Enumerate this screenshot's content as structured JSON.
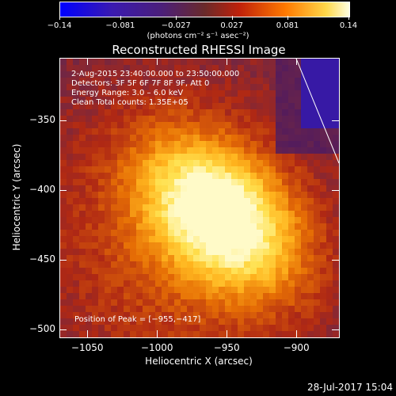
{
  "colorbar": {
    "ticks": [
      "−0.14",
      "−0.081",
      "−0.027",
      "0.027",
      "0.081",
      "0.14"
    ],
    "tick_values": [
      -0.14,
      -0.081,
      -0.027,
      0.027,
      0.081,
      0.14
    ],
    "range": [
      -0.14,
      0.14
    ],
    "unit_label": "(photons cm⁻² s⁻¹ asec⁻²)"
  },
  "chart_data": {
    "type": "heatmap",
    "title": "Reconstructed RHESSI Image",
    "xlabel": "Heliocentric X (arcsec)",
    "ylabel": "Heliocentric Y (arcsec)",
    "xlim": [
      -1070,
      -870
    ],
    "ylim": [
      -505,
      -305
    ],
    "xticks": [
      -1050,
      -1000,
      -950,
      -900
    ],
    "xtick_labels": [
      "−1050",
      "−1000",
      "−950",
      "−900"
    ],
    "yticks": [
      -350,
      -400,
      -450,
      -500
    ],
    "ytick_labels": [
      "−350",
      "−400",
      "−450",
      "−500"
    ],
    "peak": {
      "x": -955,
      "y": -417,
      "value": 0.14
    },
    "annotations": {
      "time_range": "2-Aug-2015 23:40:00.000 to 23:50:00.000",
      "detectors": "Detectors: 3F 5F 6F 7F 8F 9F, Att 0",
      "energy": "Energy Range: 3.0 – 6.0 keV",
      "clean_counts": "Clean     Total counts: 1.35E+05",
      "peak_position": "Position of Peak = [−955,−417]"
    }
  },
  "timestamp": "28-Jul-2017 15:04"
}
